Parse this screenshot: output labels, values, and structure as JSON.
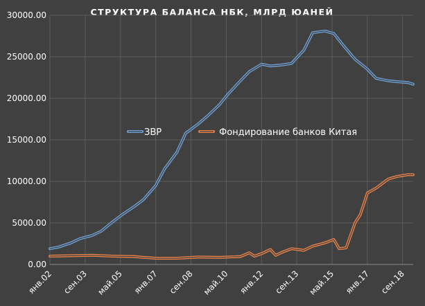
{
  "chart_data": {
    "type": "line",
    "title": "СТРУКТУРА БАЛАНСА НБК, МЛРД ЮАНЕЙ",
    "xlabel": "",
    "ylabel": "",
    "ylim": [
      0,
      30000
    ],
    "y_ticks": [
      "0.00",
      "5000.00",
      "10000.00",
      "15000.00",
      "20000.00",
      "25000.00",
      "30000.00"
    ],
    "x_ticks": [
      "янв.02",
      "сен.03",
      "май.05",
      "янв.07",
      "сен.08",
      "май.10",
      "янв.12",
      "сен.13",
      "май.15",
      "янв.17",
      "сен.18"
    ],
    "x_range": [
      "2002-01",
      "2019-03"
    ],
    "grid": true,
    "legend_position": "center",
    "series": [
      {
        "name": "ЗВР",
        "color": "#6f9fd3",
        "x": [
          "2002-01",
          "2002-06",
          "2003-01",
          "2003-06",
          "2004-01",
          "2004-06",
          "2005-01",
          "2005-06",
          "2006-01",
          "2006-06",
          "2007-01",
          "2007-06",
          "2008-01",
          "2008-06",
          "2009-01",
          "2009-06",
          "2010-01",
          "2010-06",
          "2011-01",
          "2011-06",
          "2012-01",
          "2012-06",
          "2012-12",
          "2013-06",
          "2014-01",
          "2014-06",
          "2015-01",
          "2015-06",
          "2015-12",
          "2016-06",
          "2017-01",
          "2017-06",
          "2018-01",
          "2018-06",
          "2018-12",
          "2019-03"
        ],
        "values": [
          1900,
          2100,
          2600,
          3100,
          3500,
          4000,
          5200,
          6000,
          7000,
          7800,
          9500,
          11500,
          13500,
          15800,
          16900,
          17800,
          19200,
          20500,
          22100,
          23200,
          24100,
          23900,
          24000,
          24200,
          25800,
          27900,
          28100,
          27800,
          26200,
          24700,
          23500,
          22400,
          22100,
          22000,
          21900,
          21700
        ]
      },
      {
        "name": "Фондирование банков Китая",
        "color": "#e8824a",
        "x": [
          "2002-01",
          "2003-01",
          "2004-01",
          "2005-01",
          "2006-01",
          "2006-06",
          "2007-01",
          "2008-01",
          "2008-06",
          "2009-01",
          "2010-01",
          "2010-06",
          "2011-01",
          "2011-06",
          "2011-09",
          "2012-01",
          "2012-06",
          "2012-09",
          "2013-01",
          "2013-06",
          "2014-01",
          "2014-06",
          "2015-01",
          "2015-06",
          "2015-09",
          "2016-01",
          "2016-06",
          "2016-09",
          "2017-01",
          "2017-06",
          "2018-01",
          "2018-06",
          "2018-12",
          "2019-03"
        ],
        "values": [
          1000,
          1050,
          1100,
          1000,
          950,
          850,
          750,
          750,
          800,
          900,
          850,
          900,
          950,
          1400,
          1000,
          1300,
          1800,
          1100,
          1500,
          1900,
          1700,
          2200,
          2600,
          3000,
          1900,
          2000,
          5000,
          6000,
          8600,
          9200,
          10300,
          10600,
          10800,
          10800
        ]
      }
    ]
  }
}
